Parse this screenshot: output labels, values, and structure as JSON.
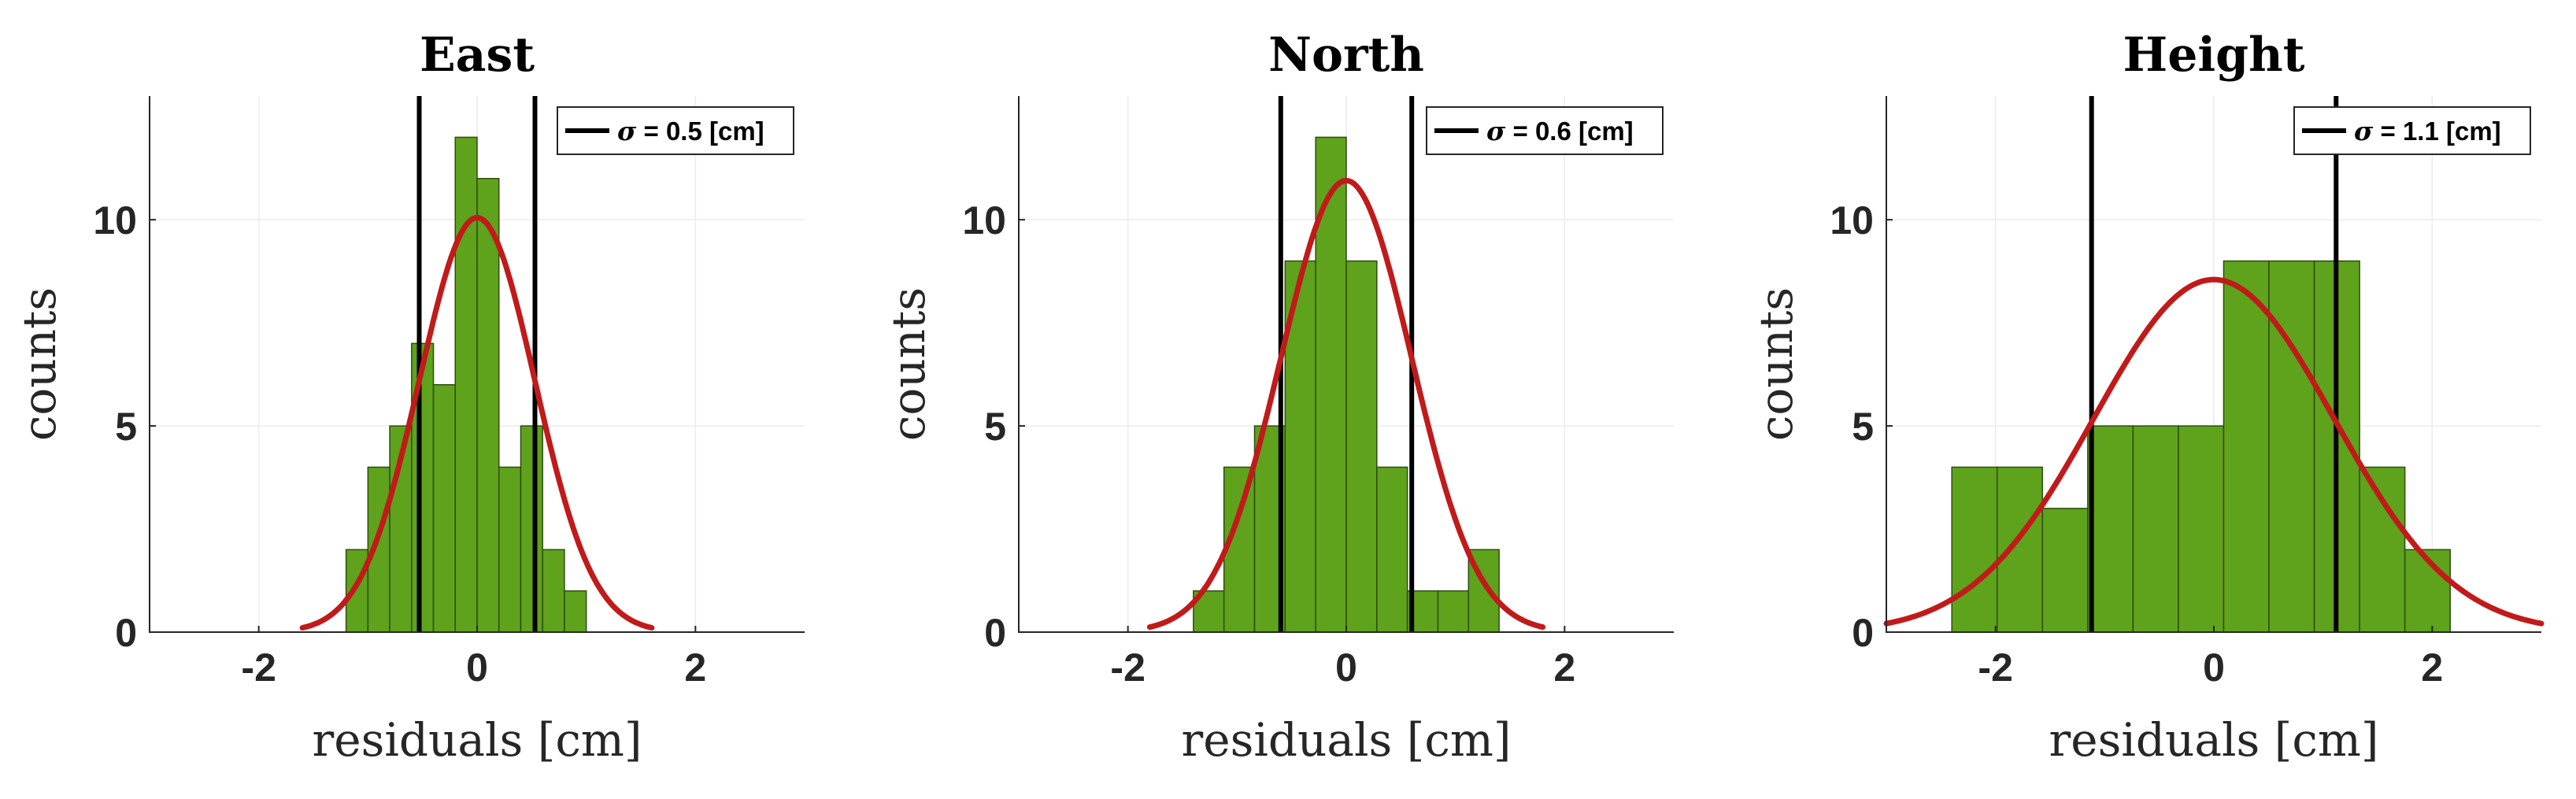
{
  "chart_data": [
    {
      "type": "bar",
      "title": "East",
      "xlabel": "residuals [cm]",
      "ylabel": "counts",
      "xlim": [
        -3,
        3
      ],
      "ylim": [
        0,
        13
      ],
      "xticks": [
        -2,
        0,
        2
      ],
      "yticks": [
        0,
        5,
        10
      ],
      "bin_start": -1.2,
      "bin_width": 0.2,
      "counts": [
        2,
        4,
        5,
        7,
        6,
        12,
        11,
        4,
        5,
        2,
        1
      ],
      "fit": {
        "mean": 0,
        "sigma": 0.53,
        "peak": 10.05,
        "range": [
          -1.6,
          1.6
        ]
      },
      "sigma_lines": [
        -0.53,
        0.53
      ],
      "legend": {
        "symbol": "σ",
        "label": " = 0.5 [cm]",
        "position": "top-right"
      },
      "grid": true
    },
    {
      "type": "bar",
      "title": "North",
      "xlabel": "residuals [cm]",
      "ylabel": "counts",
      "xlim": [
        -3,
        3
      ],
      "ylim": [
        0,
        13
      ],
      "xticks": [
        -2,
        0,
        2
      ],
      "yticks": [
        0,
        5,
        10
      ],
      "bin_start": -1.4,
      "bin_width": 0.28,
      "counts": [
        1,
        4,
        5,
        9,
        12,
        9,
        4,
        1,
        1,
        2
      ],
      "fit": {
        "mean": 0,
        "sigma": 0.6,
        "peak": 10.95,
        "range": [
          -1.8,
          1.8
        ]
      },
      "sigma_lines": [
        -0.6,
        0.6
      ],
      "legend": {
        "symbol": "σ",
        "label": " = 0.6 [cm]",
        "position": "top-right"
      },
      "grid": true
    },
    {
      "type": "bar",
      "title": "Height",
      "xlabel": "residuals [cm]",
      "ylabel": "counts",
      "xlim": [
        -3,
        3
      ],
      "ylim": [
        0,
        13
      ],
      "xticks": [
        -2,
        0,
        2
      ],
      "yticks": [
        0,
        5,
        10
      ],
      "bin_start": -2.4,
      "bin_width": 0.415,
      "counts": [
        4,
        4,
        3,
        5,
        5,
        5,
        9,
        9,
        9,
        4,
        2
      ],
      "fit": {
        "mean": 0,
        "sigma": 1.1,
        "peak": 8.55,
        "range": [
          -3,
          3
        ]
      },
      "sigma_lines": [
        -1.12,
        1.12
      ],
      "legend": {
        "symbol": "σ",
        "label": " = 1.1 [cm]",
        "position": "top-right"
      },
      "grid": true
    }
  ]
}
